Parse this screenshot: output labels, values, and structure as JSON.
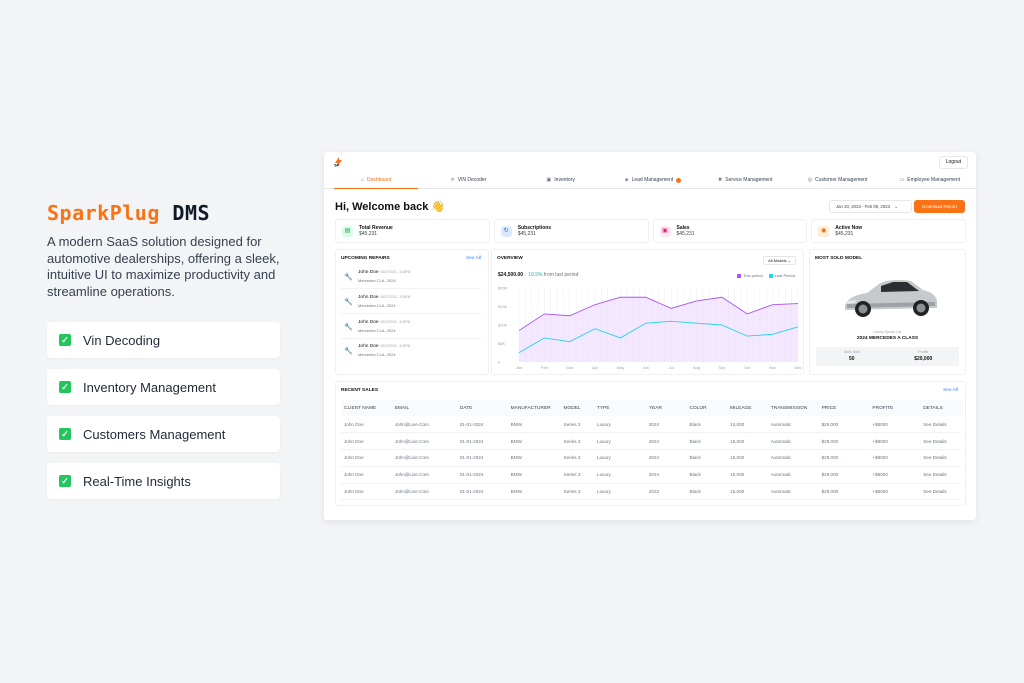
{
  "brand": {
    "part1": "SparkPlug",
    "part2": "DMS"
  },
  "description": "A modern SaaS solution designed for automotive dealerships, offering a sleek, intuitive UI to maximize productivity and streamline operations.",
  "features": [
    "Vin Decoding",
    "Inventory Management",
    "Customers Management",
    "Real-Time Insights"
  ],
  "colors": {
    "accent": "#f97316",
    "feature_check": "#22c55e",
    "this_period": "#a855f7",
    "last_period": "#22d3ee",
    "profit": "#22c55e",
    "link": "#3b82f6"
  },
  "dashboard": {
    "logo_text": "SP",
    "logout": "Logout",
    "nav": [
      {
        "label": "Dashboard",
        "icon": "home-icon"
      },
      {
        "label": "VIN Decoder",
        "icon": "tools-icon"
      },
      {
        "label": "Inventory",
        "icon": "box-icon"
      },
      {
        "label": "Lead Management",
        "icon": "lead-icon"
      },
      {
        "label": "Service Management",
        "icon": "wrench-icon"
      },
      {
        "label": "Customer Management",
        "icon": "users-icon"
      },
      {
        "label": "Employee Management",
        "icon": "briefcase-icon"
      }
    ],
    "welcome": "Hi, Welcome back",
    "welcome_emoji": "👋",
    "date_range": "Jan 20, 2023 - Feb 09, 2023",
    "download_report": "Download Report",
    "stats": [
      {
        "title": "Total Revenue",
        "value": "$45,231",
        "icon": "wallet-icon",
        "color": "#16a34a",
        "bg": "#dcfce7"
      },
      {
        "title": "Subscriptions",
        "value": "$45,231",
        "icon": "refresh-icon",
        "color": "#2563eb",
        "bg": "#dbeafe"
      },
      {
        "title": "Sales",
        "value": "$45,231",
        "icon": "sales-icon",
        "color": "#db2777",
        "bg": "#fce7f3"
      },
      {
        "title": "Active Now",
        "value": "$45,231",
        "icon": "activity-icon",
        "color": "#ea580c",
        "bg": "#ffedd5"
      }
    ],
    "repairs": {
      "title": "UPCOMING REPAIRS",
      "see_all": "See All",
      "items": [
        {
          "name": "John Doe",
          "time": "05/27/2024 - 3:30PM",
          "car": "Mercedes CLA, 2024"
        },
        {
          "name": "John Doe",
          "time": "05/27/2024 - 3:30PM",
          "car": "Mercedes CLA, 2024"
        },
        {
          "name": "John Doe",
          "time": "05/27/2024 - 3:30PM",
          "car": "Mercedes CLA, 2024"
        },
        {
          "name": "John Doe",
          "time": "05/27/2024 - 3:30PM",
          "car": "Mercedes CLA, 2024"
        }
      ]
    },
    "overview": {
      "title": "OVERVIEW",
      "amount": "$24,500.00",
      "change": "↑ 10.5%",
      "change_suffix": "from last period",
      "filter": "All Models",
      "legend": [
        "This period",
        "Last Period"
      ]
    },
    "most_sold": {
      "title": "MOST SOLD MODEL",
      "caption": "Luxury Sports Car",
      "model": "2024 MERCEDES A CLASS",
      "units_label": "Units Sold",
      "units": "50",
      "profits_label": "Profits",
      "profits": "$20,000"
    },
    "sales": {
      "title": "RECENT SALES",
      "see_all": "See All",
      "columns": [
        "CLIENT NAME",
        "EMAIL",
        "DATE",
        "MANUFACTURER",
        "MODEL",
        "TYPE",
        "YEAR",
        "COLOR",
        "MILEAGE",
        "TRANSMISSION",
        "PRICE",
        "PROFITE",
        "DETAILS"
      ],
      "rows": [
        [
          "John Doe",
          "John@Live.Com",
          "01-01-2024",
          "BMW",
          "Series 3",
          "Luxury",
          "2024",
          "Black",
          "15,000",
          "Automatic",
          "$29,000",
          "+$8000",
          "See Details"
        ],
        [
          "John Doe",
          "John@Live.Com",
          "01-01-2024",
          "BMW",
          "Series 3",
          "Luxury",
          "2024",
          "Black",
          "15,000",
          "Automatic",
          "$29,000",
          "+$8000",
          "See Details"
        ],
        [
          "John Doe",
          "John@Live.Com",
          "01-01-2024",
          "BMW",
          "Series 3",
          "Luxury",
          "2024",
          "Black",
          "15,000",
          "Automatic",
          "$29,000",
          "+$8000",
          "See Details"
        ],
        [
          "John Doe",
          "John@Live.Com",
          "01-01-2024",
          "BMW",
          "Series 3",
          "Luxury",
          "2024",
          "Black",
          "15,000",
          "Automatic",
          "$29,000",
          "+$8000",
          "See Details"
        ],
        [
          "John Doe",
          "John@Live.Com",
          "01-01-2024",
          "BMW",
          "Series 3",
          "Luxury",
          "2023",
          "Black",
          "15,000",
          "Automatic",
          "$29,000",
          "+$8000",
          "See Details"
        ]
      ]
    }
  },
  "chart_data": {
    "type": "area",
    "categories": [
      "Jan",
      "Feb",
      "Mar",
      "Apr",
      "May",
      "Jun",
      "Jul",
      "Aug",
      "Sep",
      "Oct",
      "Nov",
      "Dec"
    ],
    "series": [
      {
        "name": "This period",
        "values": [
          8500,
          13000,
          12500,
          15500,
          17500,
          17500,
          14500,
          16500,
          17500,
          13000,
          15500,
          15800
        ]
      },
      {
        "name": "Last Period",
        "values": [
          2500,
          6500,
          5500,
          9000,
          6500,
          10500,
          11000,
          10500,
          10000,
          7000,
          7500,
          9500
        ]
      }
    ],
    "y_ticks": [
      "$20K",
      "$15K",
      "$10K",
      "$5K",
      "0"
    ],
    "ylim": [
      0,
      20000
    ],
    "grid": "vertical",
    "legend_position": "top-right"
  }
}
